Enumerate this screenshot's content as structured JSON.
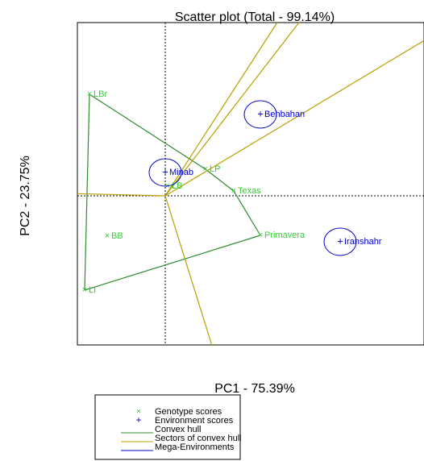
{
  "chart_data": {
    "type": "scatter",
    "title": "Scatter plot (Total - 99.14%)",
    "xlabel": "PC1 - 75.39%",
    "ylabel": "PC2 - 23.75%",
    "xlim": [
      -10.9,
      32.1
    ],
    "ylim": [
      -18.5,
      21.5
    ],
    "series": [
      {
        "name": "Genotype scores",
        "color": "#33cc33",
        "marker": "×",
        "labels": [
          "LBr",
          "LP",
          "LB",
          "Texas",
          "BB",
          "Primavera",
          "LI"
        ],
        "x": [
          -9.4,
          5.0,
          0.3,
          8.5,
          -7.2,
          11.8,
          -10.0
        ],
        "values": [
          12.6,
          3.3,
          1.2,
          0.6,
          -5.0,
          -4.9,
          -11.7
        ]
      },
      {
        "name": "Environment scores",
        "color": "#0000cc",
        "marker": "+",
        "labels": [
          "Behbahan",
          "Minab",
          "Iranshahr"
        ],
        "x": [
          11.8,
          0.0,
          21.7
        ],
        "values": [
          10.1,
          2.9,
          -5.7
        ]
      }
    ],
    "lines": [
      {
        "name": "Convex hull",
        "color": "#2e8b2e"
      },
      {
        "name": "Sectors of convex hull",
        "color": "#b8a000"
      },
      {
        "name": "Mega-Environments",
        "color": "#0000cc"
      }
    ]
  }
}
